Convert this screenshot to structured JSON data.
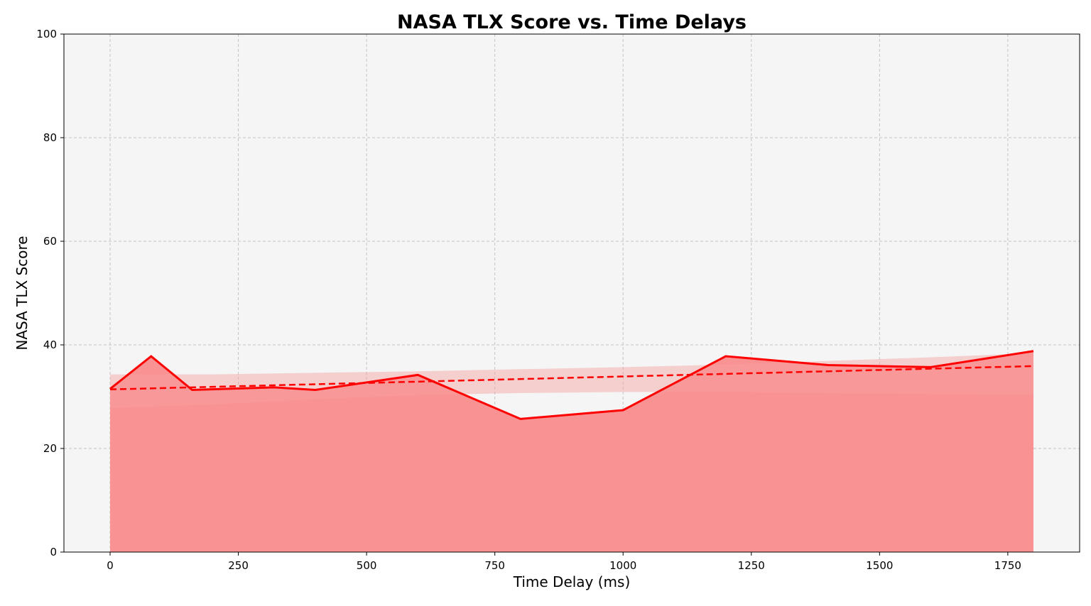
{
  "chart_data": {
    "type": "line",
    "title": "NASA TLX Score vs. Time Delays",
    "xlabel": "Time Delay (ms)",
    "ylabel": "NASA TLX Score",
    "xlim": [
      -90,
      1890
    ],
    "ylim": [
      0,
      100
    ],
    "xticks": [
      0,
      250,
      500,
      750,
      1000,
      1250,
      1500,
      1750
    ],
    "yticks": [
      0,
      20,
      40,
      60,
      80,
      100
    ],
    "grid": true,
    "colors": {
      "line": "#ff0000",
      "area_fill": "#f99393",
      "band_fill": "#f6a0a0",
      "plot_bg": "#f5f5f5"
    },
    "series": [
      {
        "style": "solid",
        "fill_to_zero": true,
        "x": [
          0,
          80,
          160,
          320,
          400,
          600,
          800,
          1000,
          1200,
          1400,
          1600,
          1800
        ],
        "y": [
          31.5,
          37.8,
          31.3,
          31.8,
          31.3,
          34.2,
          25.7,
          27.4,
          37.8,
          36.1,
          35.7,
          38.8
        ]
      },
      {
        "style": "dashed",
        "x": [
          0,
          1800
        ],
        "y": [
          31.4,
          35.9
        ]
      }
    ],
    "confidence_band": {
      "x": [
        0,
        200,
        400,
        600,
        800,
        1000,
        1200,
        1400,
        1600,
        1800
      ],
      "upper": [
        34.3,
        34.3,
        34.6,
        34.9,
        35.3,
        35.7,
        36.2,
        36.9,
        37.6,
        38.4
      ],
      "lower": [
        27.8,
        28.5,
        29.5,
        30.3,
        30.7,
        30.9,
        30.9,
        30.7,
        30.5,
        30.3
      ]
    }
  }
}
